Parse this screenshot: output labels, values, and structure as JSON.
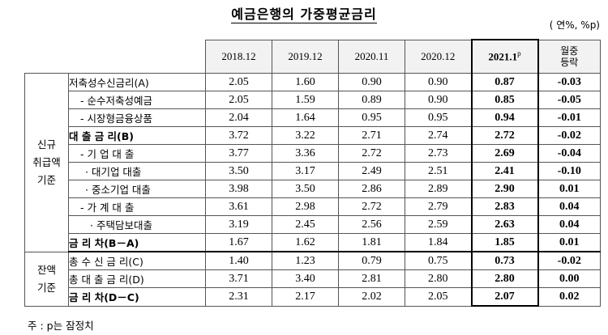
{
  "title": "예금은행의 가중평균금리",
  "unit": "( 연%, %p)",
  "headers": {
    "cols": [
      "2018.12",
      "2019.12",
      "2020.11",
      "2020.12"
    ],
    "highlight": "2021.1",
    "highlight_sup": "p",
    "change_line1": "월중",
    "change_line2": "등락"
  },
  "groups": {
    "new": [
      "신규",
      "취급액",
      "기준"
    ],
    "balance": [
      "잔액",
      "기준"
    ]
  },
  "rows": [
    {
      "label": "저축성수신금리(A)",
      "vals": [
        "2.05",
        "1.60",
        "0.90",
        "0.90"
      ],
      "hl": "0.87",
      "chg": "-0.03"
    },
    {
      "label": "- 순수저축성예금",
      "vals": [
        "2.05",
        "1.59",
        "0.89",
        "0.90"
      ],
      "hl": "0.85",
      "chg": "-0.05"
    },
    {
      "label": "- 시장형금융상품",
      "vals": [
        "2.04",
        "1.64",
        "0.95",
        "0.95"
      ],
      "hl": "0.94",
      "chg": "-0.01"
    },
    {
      "label": "대 출 금 리(B)",
      "vals": [
        "3.72",
        "3.22",
        "2.71",
        "2.74"
      ],
      "hl": "2.72",
      "chg": "-0.02"
    },
    {
      "label": "- 기 업 대 출",
      "vals": [
        "3.77",
        "3.36",
        "2.72",
        "2.73"
      ],
      "hl": "2.69",
      "chg": "-0.04"
    },
    {
      "label": "· 대기업 대출",
      "vals": [
        "3.50",
        "3.17",
        "2.49",
        "2.51"
      ],
      "hl": "2.41",
      "chg": "-0.10"
    },
    {
      "label": "· 중소기업 대출",
      "vals": [
        "3.98",
        "3.50",
        "2.86",
        "2.89"
      ],
      "hl": "2.90",
      "chg": "0.01"
    },
    {
      "label": "- 가 계 대 출",
      "vals": [
        "3.61",
        "2.98",
        "2.72",
        "2.79"
      ],
      "hl": "2.83",
      "chg": "0.04"
    },
    {
      "label": "· 주택담보대출",
      "vals": [
        "3.19",
        "2.45",
        "2.56",
        "2.59"
      ],
      "hl": "2.63",
      "chg": "0.04"
    },
    {
      "label": "금 리 차(B－A)",
      "vals": [
        "1.67",
        "1.62",
        "1.81",
        "1.84"
      ],
      "hl": "1.85",
      "chg": "0.01"
    },
    {
      "label": "총 수 신 금 리(C)",
      "vals": [
        "1.40",
        "1.23",
        "0.79",
        "0.75"
      ],
      "hl": "0.73",
      "chg": "-0.02"
    },
    {
      "label": "총 대 출 금 리(D)",
      "vals": [
        "3.71",
        "3.40",
        "2.81",
        "2.80"
      ],
      "hl": "2.80",
      "chg": "0.00"
    },
    {
      "label": "금 리 차(D－C)",
      "vals": [
        "2.31",
        "2.17",
        "2.02",
        "2.05"
      ],
      "hl": "2.07",
      "chg": "0.02"
    }
  ],
  "note": "주 : p는 잠정치"
}
